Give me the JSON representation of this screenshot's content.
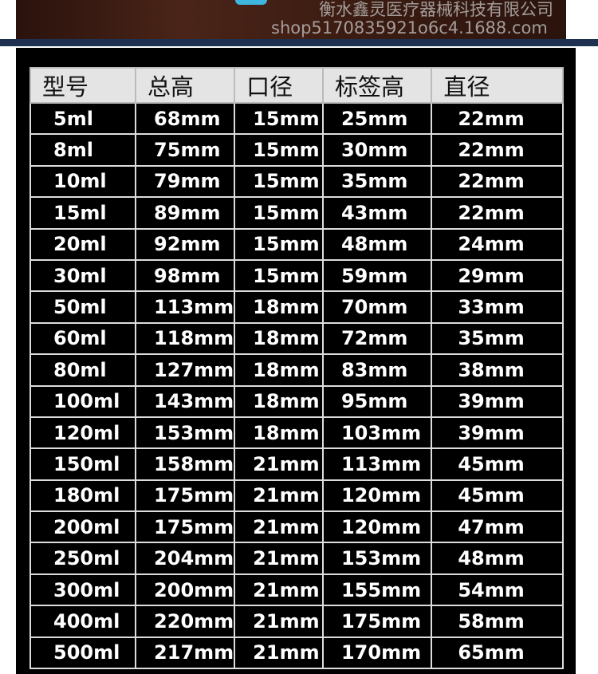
{
  "table": {
    "headers": [
      "型号",
      "总高",
      "口径",
      "标签高",
      "直径"
    ],
    "rows": [
      [
        "5ml",
        "68mm",
        "15mm",
        "25mm",
        "22mm"
      ],
      [
        "8ml",
        "75mm",
        "15mm",
        "30mm",
        "22mm"
      ],
      [
        "10ml",
        "79mm",
        "15mm",
        "35mm",
        "22mm"
      ],
      [
        "15ml",
        "89mm",
        "15mm",
        "43mm",
        "22mm"
      ],
      [
        "20ml",
        "92mm",
        "15mm",
        "48mm",
        "24mm"
      ],
      [
        "30ml",
        "98mm",
        "15mm",
        "59mm",
        "29mm"
      ],
      [
        "50ml",
        "113mm",
        "18mm",
        "70mm",
        "33mm"
      ],
      [
        "60ml",
        "118mm",
        "18mm",
        "72mm",
        "35mm"
      ],
      [
        "80ml",
        "127mm",
        "18mm",
        "83mm",
        "38mm"
      ],
      [
        "100ml",
        "143mm",
        "18mm",
        "95mm",
        "39mm"
      ],
      [
        "120ml",
        "153mm",
        "18mm",
        "103mm",
        "39mm"
      ],
      [
        "150ml",
        "158mm",
        "21mm",
        "113mm",
        "45mm"
      ],
      [
        "180ml",
        "175mm",
        "21mm",
        "120mm",
        "45mm"
      ],
      [
        "200ml",
        "175mm",
        "21mm",
        "120mm",
        "47mm"
      ],
      [
        "250ml",
        "204mm",
        "21mm",
        "153mm",
        "48mm"
      ],
      [
        "300ml",
        "200mm",
        "21mm",
        "155mm",
        "54mm"
      ],
      [
        "400ml",
        "220mm",
        "21mm",
        "175mm",
        "58mm"
      ],
      [
        "500ml",
        "217mm",
        "21mm",
        "170mm",
        "65mm"
      ]
    ]
  },
  "watermark": {
    "company": "衡水鑫灵医疗器械科技有限公司",
    "url": "shop5170835921o6c4.1688.com"
  }
}
